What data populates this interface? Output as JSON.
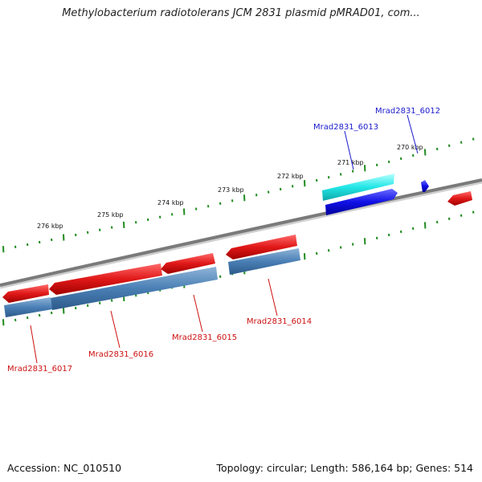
{
  "title": "Methylobacterium radiotolerans JCM 2831 plasmid pMRAD01, com...",
  "footer": {
    "accession": "Accession: NC_010510",
    "topology_prefix": "Topology: circular; Length: ",
    "length": "586,164 bp",
    "genes_prefix": "; Genes: ",
    "genes": "514"
  },
  "scale_labels": [
    "276 kbp",
    "275 kbp",
    "274 kbp",
    "273 kbp",
    "272 kbp",
    "271 kbp",
    "270 kbp"
  ],
  "gene_labels": {
    "top": [
      "Mrad2831_6012",
      "Mrad2831_6013"
    ],
    "bottom": [
      "Mrad2831_6014",
      "Mrad2831_6015",
      "Mrad2831_6016",
      "Mrad2831_6017"
    ]
  },
  "colors": {
    "backbone": "#7a7a7a",
    "tick": "#1f8a1f",
    "forward_gene": "#1010e6",
    "forward_cds": "#22e6e6",
    "reverse_gene": "#e01818",
    "reverse_cds": "#4a7fb5",
    "label_forward": "#1a1acc",
    "label_reverse": "#cc1111"
  }
}
